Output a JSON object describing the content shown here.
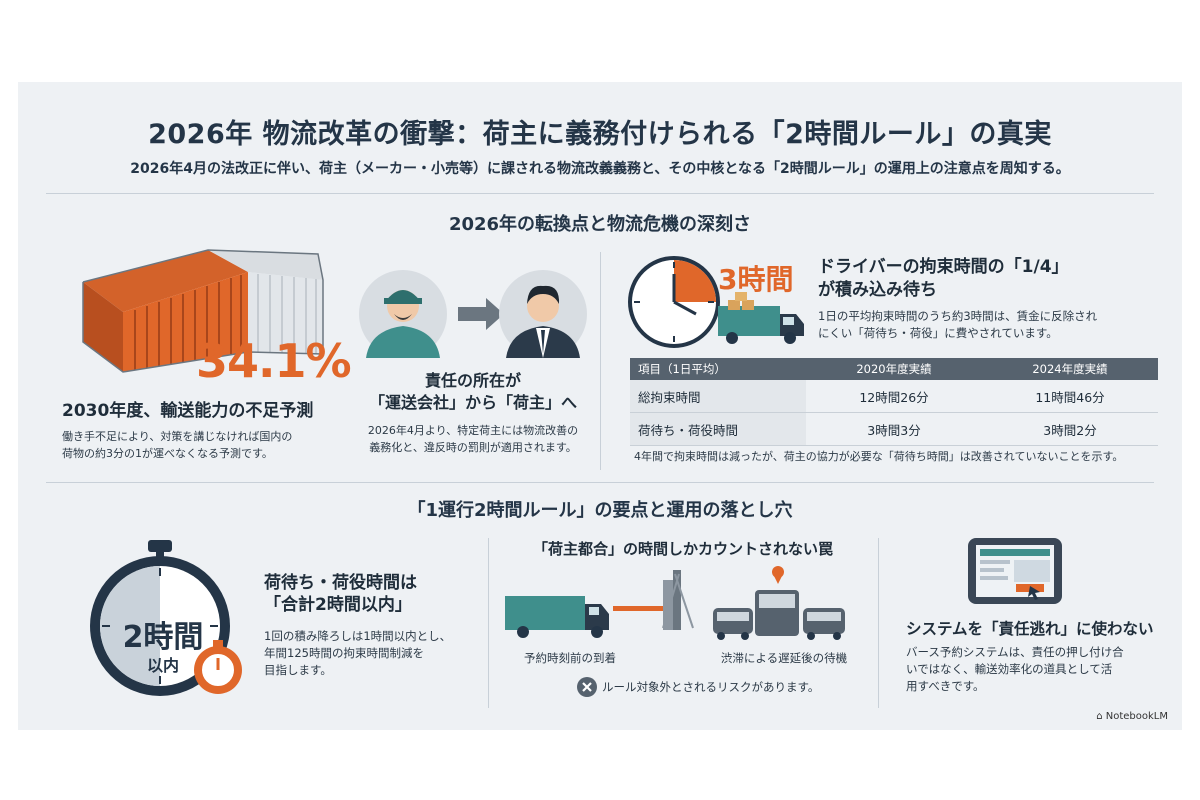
{
  "header": {
    "title": "2026年 物流改革の衝撃：荷主に義務付けられる「2時間ルール」の真実",
    "subtitle": "2026年4月の法改正に伴い、荷主（メーカー・小売等）に課される物流改義義務と、その中核となる「2時間ルール」の運用上の注意点を周知する。"
  },
  "section1": {
    "title": "2026年の転換点と物流危機の深刻さ",
    "capacity": {
      "value": "34.1%",
      "heading": "2030年度、輸送能力の不足予測",
      "body": [
        "働き手不足により、対策を講じなければ国内の",
        "荷物の約3分の1が運べなくなる予測です。"
      ]
    },
    "responsibility": {
      "heading": [
        "責任の所在が",
        "「運送会社」から「荷主」へ"
      ],
      "body": [
        "2026年4月より、特定荷主には物流改善の",
        "義務化と、違反時の罰則が適用されます。"
      ]
    },
    "waiting": {
      "clock_label": "3時間",
      "heading": [
        "ドライバーの拘束時間の「1/4」",
        "が積み込み待ち"
      ],
      "body": [
        "1日の平均拘束時間のうち約3時間は、賃金に反除され",
        "にくい「荷待ち・荷役」に費やされています。"
      ],
      "table": {
        "headers": [
          "項目（1日平均）",
          "2020年度実績",
          "2024年度実績"
        ],
        "rows": [
          [
            "総拘束時間",
            "12時間26分",
            "11時間46分"
          ],
          [
            "荷待ち・荷役時間",
            "3時間3分",
            "3時間2分"
          ]
        ]
      },
      "note": "4年間で拘束時間は減ったが、荷主の協力が必要な「荷待ち時間」は改善されていないことを示す。"
    }
  },
  "section2": {
    "title": "「1運行2時間ルール」の要点と運用の落とし穴",
    "rule": {
      "watch_label_1": "2時間",
      "watch_label_2": "以内",
      "heading": [
        "荷待ち・荷役時間は",
        "「合計2時間以内」"
      ],
      "body": [
        "1回の積み降ろしは1時間以内とし、",
        "年間125時間の拘束時間制減を",
        "目指します。"
      ]
    },
    "trap": {
      "heading": "「荷主都合」の時間しかカウントされない罠",
      "caption_left": "予約時刻前の到着",
      "caption_right": "渋滞による遅延後の待機",
      "warning": "ルール対象外とされるリスクがあります。"
    },
    "system": {
      "heading": "システムを「責任逃れ」に使わない",
      "body": [
        "バース予約システムは、責任の押し付け合",
        "いではなく、輸送効率化の道具として活",
        "用すべきです。"
      ]
    }
  },
  "watermark": "NotebookLM",
  "colors": {
    "accent": "#e0672a",
    "teal": "#3f8f8c",
    "navy": "#243547"
  }
}
